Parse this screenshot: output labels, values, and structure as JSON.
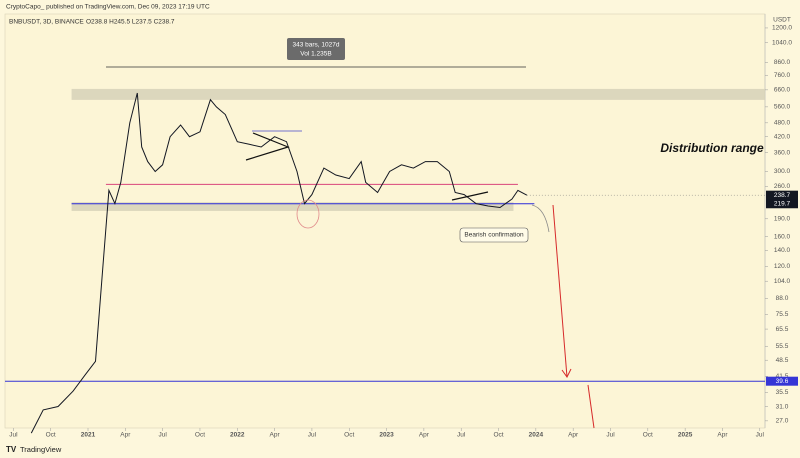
{
  "header": {
    "published": "CryptoCapo_ published on TradingView.com, Dec 09, 2023 17:19 UTC"
  },
  "chart_data": {
    "type": "line",
    "title": "BNBUSDT, 3D, BINANCE",
    "ohlc_text": "O238.8  H245.5  L237.5  C238.7",
    "y_unit": "USDT",
    "log_scale": true,
    "color": "#131722",
    "x": [
      2020.62,
      2020.7,
      2020.8,
      2020.9,
      2020.98,
      2021.05,
      2021.1,
      2021.14,
      2021.18,
      2021.22,
      2021.28,
      2021.33,
      2021.36,
      2021.4,
      2021.45,
      2021.5,
      2021.55,
      2021.62,
      2021.68,
      2021.75,
      2021.82,
      2021.86,
      2021.92,
      2022.0,
      2022.08,
      2022.16,
      2022.25,
      2022.33,
      2022.4,
      2022.45,
      2022.5,
      2022.58,
      2022.66,
      2022.75,
      2022.83,
      2022.86,
      2022.94,
      2023.02,
      2023.1,
      2023.18,
      2023.26,
      2023.34,
      2023.42,
      2023.46,
      2023.52,
      2023.6,
      2023.68,
      2023.76,
      2023.84,
      2023.88,
      2023.94
    ],
    "values": [
      24,
      30,
      31,
      36,
      42,
      48,
      120,
      250,
      220,
      270,
      480,
      640,
      380,
      330,
      300,
      320,
      420,
      470,
      420,
      440,
      600,
      560,
      520,
      400,
      390,
      380,
      420,
      400,
      300,
      220,
      240,
      310,
      290,
      280,
      330,
      270,
      245,
      300,
      320,
      310,
      330,
      330,
      300,
      245,
      240,
      220,
      215,
      212,
      230,
      250,
      238.7
    ],
    "xlim": [
      2020.444,
      2025.535
    ],
    "xticks": [
      {
        "value": 2020.5,
        "label": "Jul"
      },
      {
        "value": 2020.75,
        "label": "Oct"
      },
      {
        "value": 2021,
        "label": "2021"
      },
      {
        "value": 2021.25,
        "label": "Apr"
      },
      {
        "value": 2021.5,
        "label": "Jul"
      },
      {
        "value": 2021.75,
        "label": "Oct"
      },
      {
        "value": 2022,
        "label": "2022"
      },
      {
        "value": 2022.25,
        "label": "Apr"
      },
      {
        "value": 2022.5,
        "label": "Jul"
      },
      {
        "value": 2022.75,
        "label": "Oct"
      },
      {
        "value": 2023,
        "label": "2023"
      },
      {
        "value": 2023.25,
        "label": "Apr"
      },
      {
        "value": 2023.5,
        "label": "Jul"
      },
      {
        "value": 2023.75,
        "label": "Oct"
      },
      {
        "value": 2024,
        "label": "2024"
      },
      {
        "value": 2024.25,
        "label": "Apr"
      },
      {
        "value": 2024.5,
        "label": "Jul"
      },
      {
        "value": 2024.75,
        "label": "Oct"
      },
      {
        "value": 2025,
        "label": "2025"
      },
      {
        "value": 2025.25,
        "label": "Apr"
      },
      {
        "value": 2025.5,
        "label": "Jul"
      }
    ],
    "ylim": [
      25.2,
      1373
    ],
    "yticks": [
      {
        "value": 1200,
        "label": "1200.0"
      },
      {
        "value": 1040,
        "label": "1040.0"
      },
      {
        "value": 860,
        "label": "860.0"
      },
      {
        "value": 760,
        "label": "760.0"
      },
      {
        "value": 660,
        "label": "660.0"
      },
      {
        "value": 560,
        "label": "560.0"
      },
      {
        "value": 480,
        "label": "480.0"
      },
      {
        "value": 420,
        "label": "420.0"
      },
      {
        "value": 360,
        "label": "360.0"
      },
      {
        "value": 300,
        "label": "300.0"
      },
      {
        "value": 260,
        "label": "260.0"
      },
      {
        "value": 190,
        "label": "190.0"
      },
      {
        "value": 160,
        "label": "160.0"
      },
      {
        "value": 140,
        "label": "140.0"
      },
      {
        "value": 120,
        "label": "120.0"
      },
      {
        "value": 104,
        "label": "104.0"
      },
      {
        "value": 88,
        "label": "88.0"
      },
      {
        "value": 75.5,
        "label": "75.5"
      },
      {
        "value": 65.5,
        "label": "65.5"
      },
      {
        "value": 55.5,
        "label": "55.5"
      },
      {
        "value": 48.5,
        "label": "48.5"
      },
      {
        "value": 41.5,
        "label": "41.5"
      },
      {
        "value": 35.5,
        "label": "35.5"
      },
      {
        "value": 31,
        "label": "31.0"
      },
      {
        "value": 27,
        "label": "27.0"
      }
    ],
    "last_price": {
      "value": 238.7,
      "label": "238.7",
      "color": "#131722"
    },
    "levels": [
      {
        "value": 219.7,
        "label": "219.7",
        "color": "#2b2bd9",
        "tag_color": "#131722",
        "x_start": 2020.89,
        "x_end": 2023.99
      },
      {
        "value": 39.6,
        "label": "39.6",
        "color": "#3535d6",
        "tag_color": "#3535d6",
        "x_start": 2020.444,
        "x_end": 2025.535
      },
      {
        "value": 265,
        "color": "#d9457a",
        "x_start": 2021.12,
        "x_end": 2023.88
      }
    ],
    "zones": [
      {
        "range": [
          599,
          666
        ],
        "x_start": 2020.89,
        "x_end": 2025.535,
        "color": "#d6d1b8"
      },
      {
        "range": [
          205,
          223
        ],
        "x_start": 2020.89,
        "x_end": 2023.85,
        "color": "#d6d1b8"
      }
    ],
    "annotations": {
      "range_label": "Distribution range",
      "confirmation": "Bearish confirmation",
      "measure_bars": "343 bars, 1027d",
      "measure_vol": "Vol 1.235B"
    }
  },
  "footer": {
    "brand": "TradingView"
  }
}
